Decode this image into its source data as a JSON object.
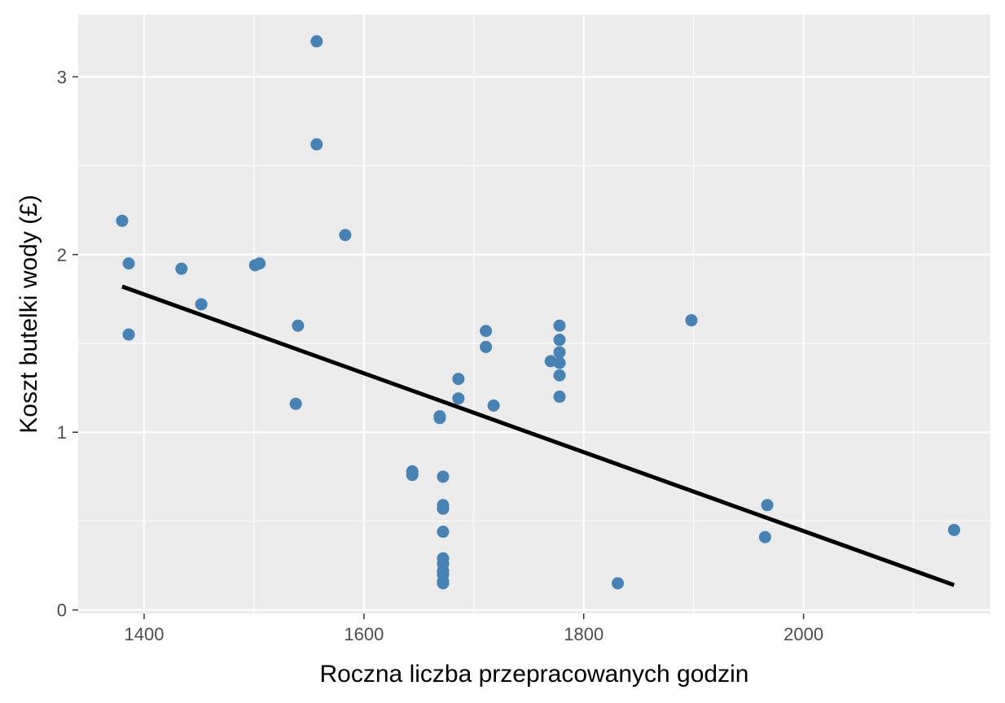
{
  "chart_data": {
    "type": "scatter",
    "title": "",
    "xlabel": "Roczna liczba przepracowanych godzin",
    "ylabel": "Koszt butelki wody (£)",
    "xlim": [
      1340,
      2170
    ],
    "ylim": [
      -0.02,
      3.35
    ],
    "x_ticks": [
      1400,
      1600,
      1800,
      2000
    ],
    "x_minor_ticks": [
      1500,
      1700,
      1900,
      2100
    ],
    "y_ticks": [
      0,
      1,
      2,
      3
    ],
    "y_minor_ticks": [
      0.5,
      1.5,
      2.5
    ],
    "x_tick_labels": [
      "1400",
      "1600",
      "1800",
      "2000"
    ],
    "y_tick_labels": [
      "0",
      "1",
      "2",
      "3"
    ],
    "grid": true,
    "colors": {
      "panel_background": "#ebebeb",
      "grid": "#ffffff",
      "points": "#4682b4",
      "trend_line": "#000000"
    },
    "series": [
      {
        "points": [
          [
            1380,
            2.19
          ],
          [
            1386,
            1.95
          ],
          [
            1386,
            1.55
          ],
          [
            1434,
            1.92
          ],
          [
            1452,
            1.72
          ],
          [
            1501,
            1.94
          ],
          [
            1505,
            1.95
          ],
          [
            1538,
            1.16
          ],
          [
            1540,
            1.6
          ],
          [
            1557,
            3.2
          ],
          [
            1557,
            2.62
          ],
          [
            1583,
            2.11
          ],
          [
            1644,
            0.78
          ],
          [
            1644,
            0.76
          ],
          [
            1669,
            1.09
          ],
          [
            1669,
            1.08
          ],
          [
            1672,
            0.75
          ],
          [
            1672,
            0.59
          ],
          [
            1672,
            0.57
          ],
          [
            1672,
            0.44
          ],
          [
            1672,
            0.29
          ],
          [
            1672,
            0.26
          ],
          [
            1672,
            0.22
          ],
          [
            1672,
            0.2
          ],
          [
            1672,
            0.16
          ],
          [
            1672,
            0.15
          ],
          [
            1686,
            1.3
          ],
          [
            1686,
            1.19
          ],
          [
            1711,
            1.57
          ],
          [
            1711,
            1.48
          ],
          [
            1718,
            1.15
          ],
          [
            1770,
            1.4
          ],
          [
            1778,
            1.6
          ],
          [
            1778,
            1.52
          ],
          [
            1778,
            1.45
          ],
          [
            1778,
            1.39
          ],
          [
            1778,
            1.32
          ],
          [
            1778,
            1.2
          ],
          [
            1831,
            0.15
          ],
          [
            1898,
            1.63
          ],
          [
            1965,
            0.41
          ],
          [
            1967,
            0.59
          ],
          [
            2137,
            0.45
          ]
        ]
      }
    ],
    "trend_line": {
      "x1": 1380,
      "y1": 1.82,
      "x2": 2137,
      "y2": 0.14
    }
  }
}
